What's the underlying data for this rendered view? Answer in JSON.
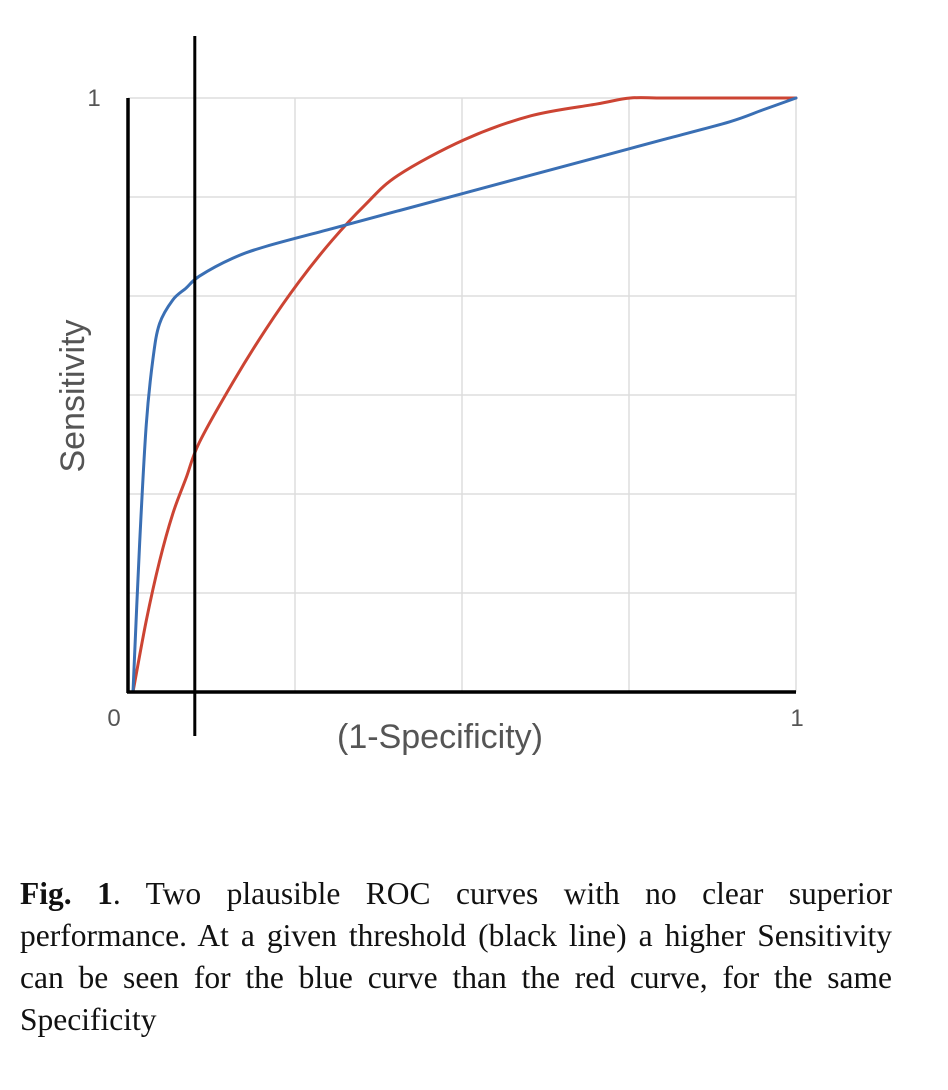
{
  "chart_data": {
    "type": "line",
    "xlabel": "(1-Specificity)",
    "ylabel": "Sensitivity",
    "xlim": [
      0,
      1
    ],
    "ylim": [
      0,
      1
    ],
    "grid": true,
    "x_tick_labels": [
      {
        "value": 0,
        "label": "0"
      },
      {
        "value": 1,
        "label": "1"
      }
    ],
    "y_tick_labels": [
      {
        "value": 1,
        "label": "1"
      }
    ],
    "gridlines_x": [
      0.25,
      0.5,
      0.75,
      1.0
    ],
    "gridlines_y": [
      0.1667,
      0.3333,
      0.5,
      0.6667,
      0.8333,
      1.0
    ],
    "threshold_x": 0.1,
    "threshold_label": "black line",
    "series": [
      {
        "color": "#3a6fb4",
        "x": [
          0.0,
          0.01,
          0.02,
          0.03,
          0.04,
          0.06,
          0.08,
          0.1,
          0.15,
          0.2,
          0.3,
          0.4,
          0.5,
          0.6,
          0.7,
          0.8,
          0.9,
          0.95,
          1.0
        ],
        "y": [
          0.0,
          0.25,
          0.45,
          0.56,
          0.62,
          0.66,
          0.68,
          0.7,
          0.73,
          0.75,
          0.78,
          0.81,
          0.84,
          0.87,
          0.9,
          0.93,
          0.96,
          0.98,
          1.0
        ]
      },
      {
        "color": "#cc4433",
        "x": [
          0.0,
          0.02,
          0.04,
          0.06,
          0.08,
          0.1,
          0.15,
          0.2,
          0.25,
          0.3,
          0.35,
          0.4,
          0.5,
          0.6,
          0.7,
          0.75,
          0.8,
          0.9,
          1.0
        ],
        "y": [
          0.0,
          0.12,
          0.22,
          0.3,
          0.36,
          0.42,
          0.52,
          0.61,
          0.69,
          0.76,
          0.82,
          0.87,
          0.93,
          0.97,
          0.99,
          1.0,
          1.0,
          1.0,
          1.0
        ]
      }
    ]
  },
  "caption": {
    "label": "Fig. 1",
    "text": ". Two plausible ROC curves with no clear superior performance. At a given threshold (black line) a higher Sensitivity can be seen for the blue curve than the red curve, for the same Specificity"
  }
}
